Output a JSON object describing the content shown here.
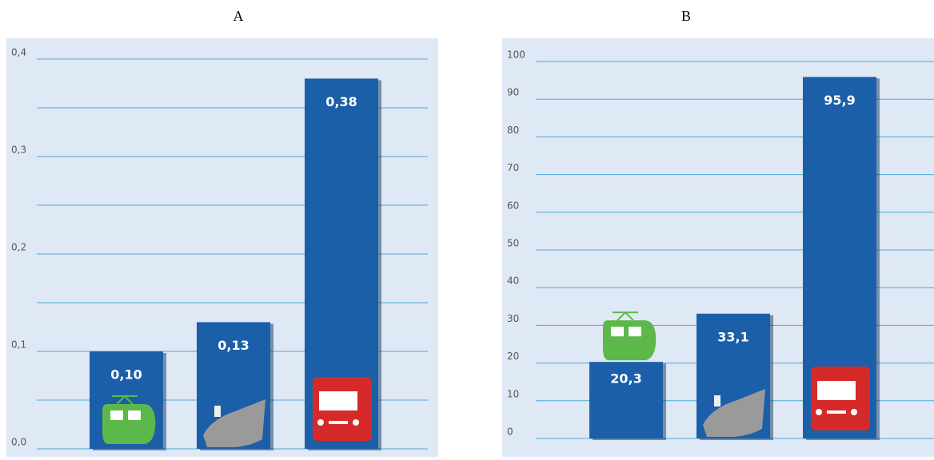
{
  "chart_data": [
    {
      "type": "bar",
      "title": "A",
      "categories": [
        null,
        null,
        null
      ],
      "values": [
        0.1,
        0.13,
        0.38
      ],
      "value_labels": [
        "0,10",
        "0,13",
        "0,38"
      ],
      "color": "#1b5fa8",
      "ylim": [
        0,
        0.4
      ],
      "yticks": [
        {
          "value": 0,
          "label": "0,0"
        },
        {
          "value": 0.1,
          "label": "0,1"
        },
        {
          "value": 0.2,
          "label": "0,2"
        },
        {
          "value": 0.3,
          "label": "0,3"
        },
        {
          "value": 0.4,
          "label": "0,4"
        }
      ],
      "minor_yticks": [
        0.05,
        0.15,
        0.25,
        0.35
      ],
      "grid": true
    },
    {
      "type": "bar",
      "title": "B",
      "categories": [
        null,
        null,
        null
      ],
      "values": [
        20.3,
        33.1,
        95.9
      ],
      "value_labels": [
        "20,3",
        "33,1",
        "95,9"
      ],
      "color": "#1b5fa8",
      "ylim": [
        0,
        100
      ],
      "yticks": [
        0,
        10,
        20,
        30,
        40,
        50,
        60,
        70,
        80,
        90,
        100
      ],
      "grid": true
    }
  ]
}
